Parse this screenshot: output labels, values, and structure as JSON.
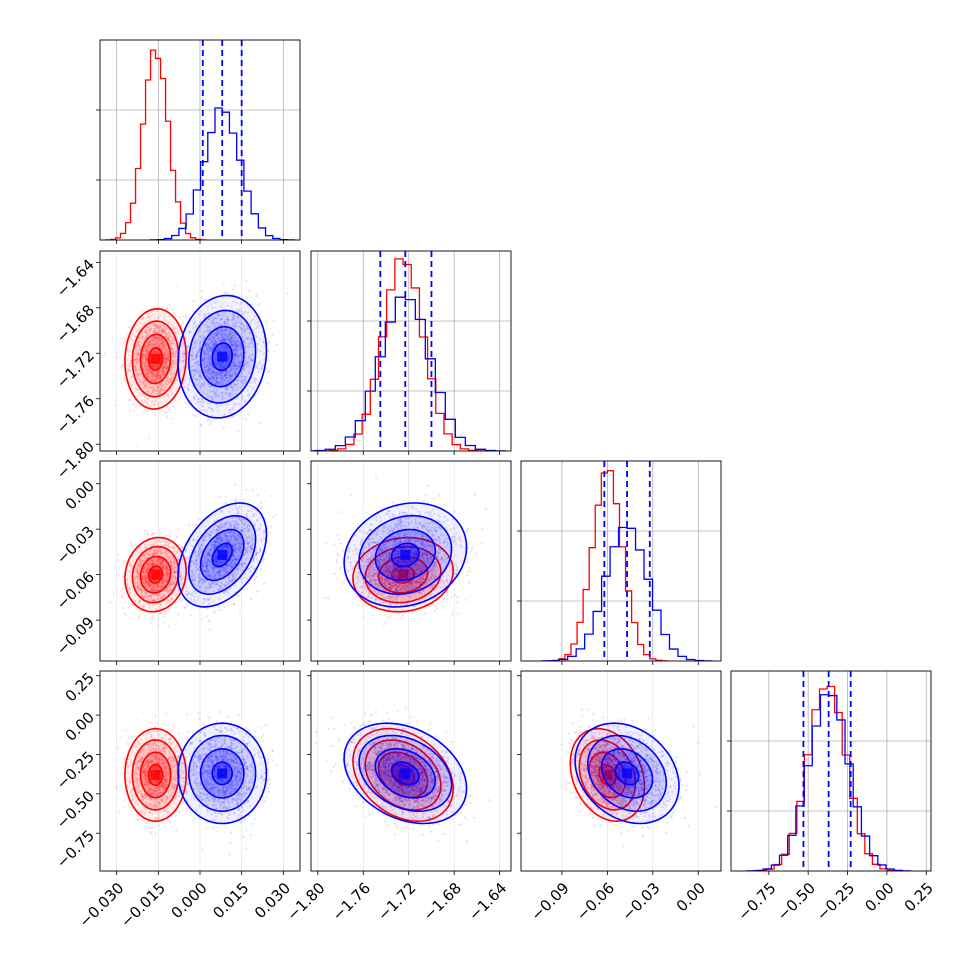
{
  "chart_data": {
    "type": "corner",
    "grid": true,
    "series": [
      {
        "name": "",
        "color": "#ff0000",
        "means": [
          -0.016,
          -1.725,
          -0.06,
          -0.38
        ],
        "sigmas": [
          0.0045,
          0.018,
          0.01,
          0.12
        ],
        "correlations": {
          "1_0": 0.05,
          "2_0": 0.1,
          "2_1": 0.1,
          "3_0": 0.0,
          "3_1": -0.3,
          "3_2": -0.25
        }
      },
      {
        "name": "",
        "color": "#0000ff",
        "means": [
          0.008,
          -1.723,
          -0.047,
          -0.37
        ],
        "sigmas": [
          0.0065,
          0.022,
          0.014,
          0.13
        ],
        "correlations": {
          "1_0": 0.1,
          "2_0": 0.4,
          "2_1": 0.15,
          "3_0": 0.0,
          "3_1": -0.3,
          "3_2": -0.25
        }
      }
    ],
    "quantile_lines": {
      "color": "#0000ff",
      "values": [
        [
          0.001,
          0.008,
          0.015
        ],
        [
          -1.745,
          -1.723,
          -1.7
        ],
        [
          -0.062,
          -0.047,
          -0.032
        ],
        [
          -0.53,
          -0.37,
          -0.23
        ]
      ]
    },
    "params": [
      {
        "range": [
          -0.036,
          0.036
        ],
        "ticks": [
          -0.03,
          -0.015,
          0.0,
          0.015,
          0.03
        ],
        "tick_labels": [
          "−0.030",
          "−0.015",
          "0.000",
          "0.015",
          "0.030"
        ]
      },
      {
        "range": [
          -1.806,
          -1.63
        ],
        "ticks": [
          -1.8,
          -1.76,
          -1.72,
          -1.68,
          -1.64
        ],
        "tick_labels": [
          "−1.80",
          "−1.76",
          "−1.72",
          "−1.68",
          "−1.64"
        ]
      },
      {
        "range": [
          -0.117,
          0.015
        ],
        "ticks": [
          -0.09,
          -0.06,
          -0.03,
          0.0
        ],
        "tick_labels": [
          "−0.09",
          "−0.06",
          "−0.03",
          "0.00"
        ]
      },
      {
        "range": [
          -0.99,
          0.28
        ],
        "ticks": [
          -0.75,
          -0.5,
          -0.25,
          0.0,
          0.25
        ],
        "tick_labels": [
          "−0.75",
          "−0.50",
          "−0.25",
          "0.00",
          "0.25"
        ]
      }
    ]
  }
}
